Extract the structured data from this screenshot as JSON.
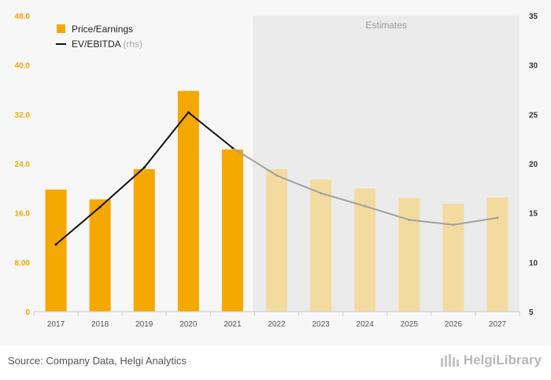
{
  "chart_data": {
    "type": "bar",
    "categories": [
      "2017",
      "2018",
      "2019",
      "2020",
      "2021",
      "2022",
      "2023",
      "2024",
      "2025",
      "2026",
      "2027"
    ],
    "series": [
      {
        "name": "Price/Earnings",
        "axis": "left",
        "kind": "bar",
        "values": [
          19.8,
          18.2,
          23.1,
          35.8,
          26.3,
          23.1,
          21.4,
          20.0,
          18.4,
          17.5,
          18.5
        ],
        "color": "#f5a800",
        "estimate_color": "#f3dba0"
      },
      {
        "name": "EV/EBITDA",
        "name_suffix": "(rhs)",
        "axis": "right",
        "kind": "line",
        "values": [
          11.8,
          15.6,
          19.6,
          25.2,
          21.6,
          18.8,
          17.0,
          15.7,
          14.3,
          13.8,
          14.5
        ],
        "color": "#111111",
        "estimate_color": "#a0a0a0"
      }
    ],
    "left_axis": {
      "min": 0,
      "max": 48,
      "ticks": [
        "0",
        "8.00",
        "16.0",
        "24.0",
        "32.0",
        "40.0",
        "48.0"
      ],
      "tick_color": "#f5a800"
    },
    "right_axis": {
      "min": 5,
      "max": 35,
      "ticks": [
        "5",
        "10",
        "15",
        "20",
        "25",
        "30",
        "35"
      ]
    },
    "estimates_start_index": 5,
    "estimates_label": "Estimates",
    "legend_position": "top-left"
  },
  "footer": {
    "source": "Source: Company Data, Helgi Analytics",
    "brand": "HelgiLibrary"
  }
}
